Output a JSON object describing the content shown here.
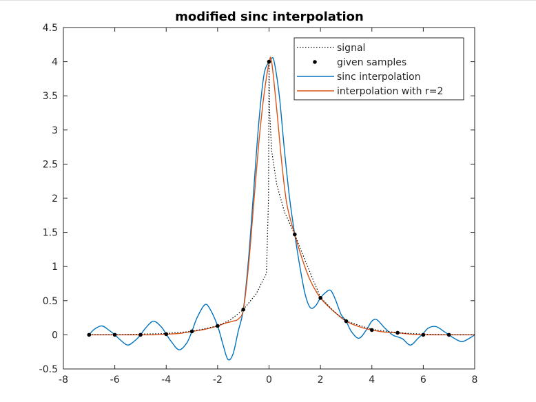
{
  "chart_data": {
    "type": "line",
    "title": "modified sinc interpolation",
    "xlabel": "",
    "ylabel": "",
    "xlim": [
      -8,
      8
    ],
    "ylim": [
      -0.5,
      4.5
    ],
    "xticks": [
      -8,
      -6,
      -4,
      -2,
      0,
      2,
      4,
      6,
      8
    ],
    "yticks": [
      -0.5,
      0,
      0.5,
      1,
      1.5,
      2,
      2.5,
      3,
      3.5,
      4,
      4.5
    ],
    "xtick_labels": [
      "-8",
      "-6",
      "-4",
      "-2",
      "0",
      "2",
      "4",
      "6",
      "8"
    ],
    "ytick_labels": [
      "-0.5",
      "0",
      "0.5",
      "1",
      "1.5",
      "2",
      "2.5",
      "3",
      "3.5",
      "4",
      "4.5"
    ],
    "grid": false,
    "legend_position": "top-right",
    "colors": {
      "signal": "#000000",
      "samples": "#000000",
      "sinc": "#0072BD",
      "r2": "#D95319"
    },
    "series": [
      {
        "name": "signal",
        "style": "dotted",
        "x": [
          -7,
          -6,
          -5,
          -4,
          -3,
          -2,
          -1.5,
          -1,
          -0.5,
          -0.1,
          -0.02,
          0,
          0.02,
          0.1,
          0.3,
          0.6,
          1,
          1.5,
          2,
          2.5,
          3,
          4,
          5,
          6,
          7,
          8
        ],
        "y": [
          0.0,
          0.0,
          0.01,
          0.02,
          0.05,
          0.13,
          0.22,
          0.37,
          0.6,
          0.9,
          2.0,
          4.0,
          3.3,
          2.7,
          2.2,
          1.8,
          1.47,
          1.0,
          0.55,
          0.35,
          0.2,
          0.08,
          0.03,
          0.01,
          0.0,
          0.0
        ]
      },
      {
        "name": "given samples",
        "style": "markers",
        "x": [
          -7,
          -6,
          -5,
          -4,
          -3,
          -2,
          -1,
          0,
          1,
          2,
          3,
          4,
          5,
          6,
          7
        ],
        "y": [
          0.0,
          0.0,
          0.0,
          0.01,
          0.05,
          0.13,
          0.37,
          4.0,
          1.47,
          0.54,
          0.2,
          0.07,
          0.03,
          0.0,
          0.0
        ]
      },
      {
        "name": "sinc interpolation",
        "style": "solid",
        "x": [
          -7,
          -6.8,
          -6.5,
          -6.2,
          -6,
          -5.8,
          -5.5,
          -5.2,
          -5,
          -4.8,
          -4.5,
          -4.2,
          -4,
          -3.8,
          -3.5,
          -3.2,
          -3,
          -2.8,
          -2.5,
          -2.3,
          -2,
          -1.8,
          -1.6,
          -1.4,
          -1.2,
          -1,
          -0.8,
          -0.6,
          -0.4,
          -0.2,
          0,
          0.1,
          0.2,
          0.4,
          0.6,
          0.8,
          1,
          1.2,
          1.4,
          1.6,
          1.8,
          2,
          2.2,
          2.4,
          2.6,
          2.8,
          3,
          3.2,
          3.5,
          3.8,
          4,
          4.2,
          4.5,
          4.8,
          5,
          5.2,
          5.5,
          5.8,
          6,
          6.2,
          6.5,
          6.8,
          7,
          7.2,
          7.5,
          7.8,
          8
        ],
        "y": [
          0.0,
          0.08,
          0.13,
          0.06,
          0.0,
          -0.07,
          -0.15,
          -0.08,
          0.0,
          0.1,
          0.2,
          0.12,
          0.01,
          -0.1,
          -0.22,
          -0.12,
          0.05,
          0.25,
          0.44,
          0.38,
          0.13,
          -0.13,
          -0.36,
          -0.28,
          0.05,
          0.37,
          1.1,
          2.1,
          3.1,
          3.8,
          4.0,
          4.05,
          4.0,
          3.5,
          2.7,
          2.0,
          1.47,
          1.0,
          0.6,
          0.4,
          0.42,
          0.54,
          0.62,
          0.65,
          0.5,
          0.3,
          0.2,
          0.05,
          -0.05,
          0.08,
          0.2,
          0.22,
          0.1,
          0.0,
          -0.03,
          -0.06,
          -0.15,
          -0.05,
          0.02,
          0.1,
          0.12,
          0.05,
          0.0,
          -0.05,
          -0.1,
          -0.05,
          0.0
        ]
      },
      {
        "name": "interpolation with r=2",
        "style": "solid",
        "x": [
          -7,
          -6.5,
          -6,
          -5.5,
          -5,
          -4.5,
          -4,
          -3.5,
          -3,
          -2.5,
          -2,
          -1.7,
          -1.4,
          -1.2,
          -1,
          -0.8,
          -0.6,
          -0.4,
          -0.2,
          0,
          0.1,
          0.3,
          0.5,
          0.7,
          1,
          1.3,
          1.6,
          2,
          2.5,
          3,
          3.5,
          4,
          4.5,
          5,
          5.5,
          6,
          6.5,
          7,
          7.5,
          8
        ],
        "y": [
          0.0,
          0.0,
          0.0,
          0.0,
          0.0,
          0.0,
          0.01,
          0.02,
          0.05,
          0.08,
          0.13,
          0.17,
          0.2,
          0.23,
          0.37,
          1.0,
          1.9,
          2.8,
          3.5,
          3.98,
          4.0,
          3.3,
          2.5,
          1.9,
          1.47,
          1.1,
          0.8,
          0.54,
          0.35,
          0.2,
          0.12,
          0.07,
          0.04,
          0.03,
          0.01,
          0.0,
          0.0,
          0.0,
          0.0,
          0.0
        ]
      }
    ]
  }
}
